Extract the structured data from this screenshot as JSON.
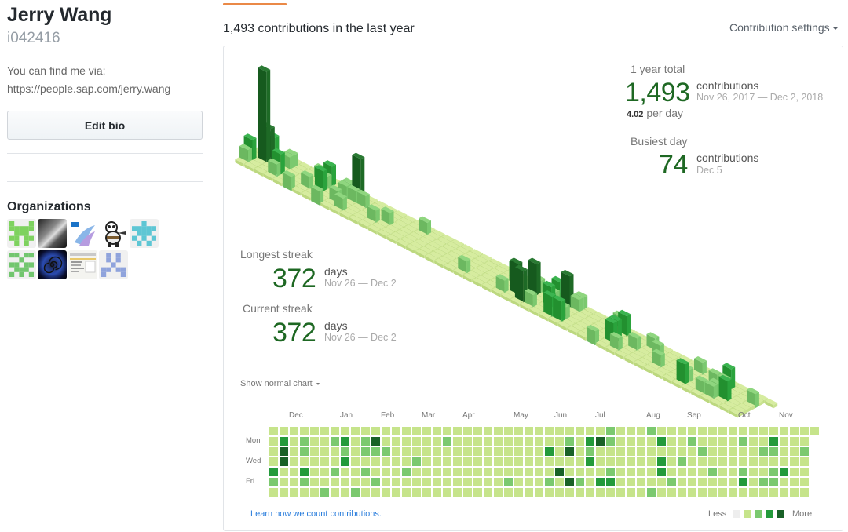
{
  "profile": {
    "name": "Jerry Wang",
    "login": "i042416",
    "bio_line1": "You can find me via:",
    "bio_line2": "https://people.sap.com/jerry.wang",
    "edit_bio_label": "Edit bio",
    "organizations_title": "Organizations",
    "organizations": [
      {
        "name": "org-identicon-green",
        "kind": "identicon",
        "color": "#7ed25f"
      },
      {
        "name": "org-tunnel-photo",
        "kind": "photo-bw"
      },
      {
        "name": "org-sap-logo",
        "kind": "sap"
      },
      {
        "name": "org-kung-fu-panda",
        "kind": "panda"
      },
      {
        "name": "org-identicon-cyan",
        "kind": "identicon",
        "color": "#5ec6d4"
      },
      {
        "name": "org-identicon-green2",
        "kind": "identicon",
        "color": "#72c66f"
      },
      {
        "name": "org-spiral",
        "kind": "spiral"
      },
      {
        "name": "org-screenshot",
        "kind": "screenshot"
      },
      {
        "name": "org-identicon-blue",
        "kind": "identicon",
        "color": "#8fa3dc"
      }
    ]
  },
  "contributions": {
    "heading": "1,493 contributions in the last year",
    "settings_label": "Contribution settings",
    "show_normal_label": "Show normal chart",
    "learn_link": "Learn how we count contributions.",
    "legend_less": "Less",
    "legend_more": "More",
    "legend_colors": [
      "#eeeeee",
      "#c6e48b",
      "#7bc96f",
      "#239a3b",
      "#196127"
    ],
    "stats": {
      "year_total_label": "1 year total",
      "year_total_value": "1,493",
      "year_total_unit": "contributions",
      "year_total_range": "Nov 26, 2017 — Dec 2, 2018",
      "per_day_value": "4.02",
      "per_day_label": "per day",
      "busiest_label": "Busiest day",
      "busiest_value": "74",
      "busiest_unit": "contributions",
      "busiest_date": "Dec 5",
      "longest_label": "Longest streak",
      "longest_value": "372",
      "longest_unit": "days",
      "longest_range": "Nov 26 — Dec 2",
      "current_label": "Current streak",
      "current_value": "372",
      "current_unit": "days",
      "current_range": "Nov 26 — Dec 2"
    }
  },
  "chart_data": {
    "type": "heatmap",
    "title": "1,493 contributions in the last year",
    "months": [
      {
        "label": "Dec",
        "week": 1
      },
      {
        "label": "Jan",
        "week": 6
      },
      {
        "label": "Feb",
        "week": 10
      },
      {
        "label": "Mar",
        "week": 14
      },
      {
        "label": "Apr",
        "week": 18
      },
      {
        "label": "May",
        "week": 23
      },
      {
        "label": "Jun",
        "week": 27
      },
      {
        "label": "Jul",
        "week": 31
      },
      {
        "label": "Aug",
        "week": 36
      },
      {
        "label": "Sep",
        "week": 40
      },
      {
        "label": "Oct",
        "week": 45
      },
      {
        "label": "Nov",
        "week": 49
      }
    ],
    "weekday_labels": [
      {
        "label": "Mon",
        "row": 1
      },
      {
        "label": "Wed",
        "row": 3
      },
      {
        "label": "Fri",
        "row": 5
      }
    ],
    "level_scale": "0=none, 1=light, 2=medium, 3=high, 4=max",
    "weeks": 54,
    "grid_levels_by_week": [
      [
        1,
        1,
        1,
        1,
        3,
        2,
        1
      ],
      [
        1,
        3,
        4,
        4,
        1,
        1,
        1
      ],
      [
        1,
        1,
        1,
        1,
        1,
        1,
        1
      ],
      [
        1,
        2,
        2,
        1,
        3,
        2,
        1
      ],
      [
        1,
        1,
        1,
        1,
        1,
        1,
        1
      ],
      [
        1,
        1,
        1,
        1,
        1,
        1,
        2
      ],
      [
        1,
        2,
        1,
        1,
        2,
        1,
        1
      ],
      [
        1,
        3,
        2,
        3,
        1,
        1,
        1
      ],
      [
        1,
        1,
        1,
        1,
        1,
        1,
        2
      ],
      [
        1,
        2,
        2,
        1,
        2,
        1,
        1
      ],
      [
        1,
        4,
        2,
        1,
        1,
        2,
        1
      ],
      [
        1,
        1,
        2,
        1,
        1,
        1,
        1
      ],
      [
        1,
        1,
        1,
        1,
        1,
        1,
        1
      ],
      [
        1,
        1,
        1,
        1,
        2,
        1,
        1
      ],
      [
        1,
        1,
        1,
        2,
        1,
        1,
        1
      ],
      [
        1,
        1,
        1,
        1,
        1,
        1,
        1
      ],
      [
        1,
        1,
        1,
        1,
        1,
        1,
        1
      ],
      [
        1,
        2,
        1,
        1,
        1,
        1,
        1
      ],
      [
        1,
        1,
        1,
        1,
        1,
        1,
        1
      ],
      [
        1,
        1,
        1,
        1,
        1,
        1,
        1
      ],
      [
        1,
        1,
        1,
        1,
        1,
        1,
        1
      ],
      [
        1,
        1,
        1,
        1,
        1,
        1,
        1
      ],
      [
        1,
        1,
        1,
        1,
        1,
        1,
        1
      ],
      [
        1,
        1,
        1,
        1,
        1,
        2,
        1
      ],
      [
        1,
        1,
        1,
        1,
        1,
        1,
        1
      ],
      [
        1,
        1,
        1,
        1,
        1,
        1,
        1
      ],
      [
        1,
        1,
        1,
        1,
        1,
        1,
        1
      ],
      [
        1,
        1,
        3,
        1,
        1,
        2,
        1
      ],
      [
        1,
        1,
        1,
        1,
        4,
        1,
        1
      ],
      [
        1,
        2,
        4,
        1,
        1,
        4,
        1
      ],
      [
        1,
        1,
        1,
        1,
        1,
        2,
        1
      ],
      [
        1,
        3,
        2,
        3,
        1,
        1,
        1
      ],
      [
        1,
        4,
        1,
        1,
        1,
        3,
        1
      ],
      [
        2,
        2,
        1,
        1,
        2,
        3,
        1
      ],
      [
        1,
        1,
        1,
        1,
        1,
        1,
        1
      ],
      [
        1,
        1,
        1,
        1,
        1,
        1,
        1
      ],
      [
        1,
        1,
        1,
        1,
        1,
        1,
        1
      ],
      [
        2,
        1,
        1,
        1,
        1,
        1,
        2
      ],
      [
        1,
        3,
        1,
        3,
        3,
        1,
        1
      ],
      [
        1,
        1,
        1,
        1,
        1,
        2,
        1
      ],
      [
        1,
        1,
        1,
        2,
        1,
        1,
        1
      ],
      [
        1,
        2,
        1,
        1,
        1,
        1,
        1
      ],
      [
        1,
        1,
        2,
        1,
        1,
        1,
        1
      ],
      [
        1,
        1,
        1,
        1,
        2,
        1,
        1
      ],
      [
        1,
        1,
        1,
        1,
        1,
        1,
        1
      ],
      [
        1,
        1,
        1,
        1,
        1,
        1,
        1
      ],
      [
        1,
        2,
        1,
        1,
        2,
        3,
        1
      ],
      [
        1,
        1,
        1,
        1,
        1,
        1,
        1
      ],
      [
        1,
        1,
        2,
        1,
        1,
        2,
        1
      ],
      [
        1,
        3,
        2,
        1,
        2,
        2,
        1
      ],
      [
        1,
        1,
        1,
        1,
        3,
        1,
        1
      ],
      [
        1,
        1,
        1,
        1,
        1,
        1,
        1
      ],
      [
        1,
        1,
        2,
        1,
        1,
        1,
        1
      ],
      [
        1,
        null,
        null,
        null,
        null,
        null,
        null
      ]
    ]
  }
}
